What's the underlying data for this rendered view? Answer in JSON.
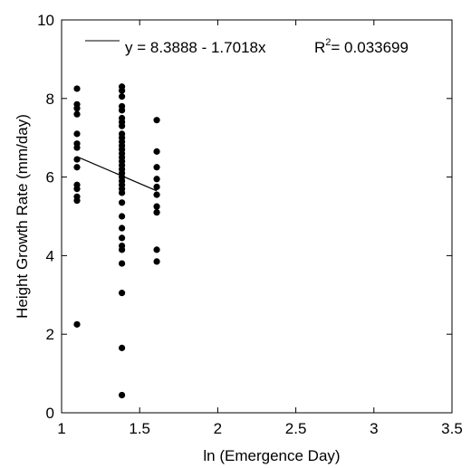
{
  "chart_data": {
    "type": "scatter",
    "title": "",
    "xlabel": "ln (Emergence Day)",
    "ylabel": "Height Growth Rate (mm/day)",
    "xlim": [
      1,
      3.5
    ],
    "ylim": [
      0,
      10
    ],
    "xticks": [
      "1",
      "1.5",
      "2",
      "2.5",
      "3",
      "3.5"
    ],
    "yticks": [
      "0",
      "2",
      "4",
      "6",
      "8",
      "10"
    ],
    "grid": false,
    "legend_position": "top",
    "regression": {
      "intercept": 8.3888,
      "slope": -1.7018,
      "x_range": [
        1.0986,
        1.6094
      ],
      "equation_text": "y = 8.3888 - 1.7018x",
      "r2_label": "R",
      "r2_sup": "2",
      "r2_value": "= 0.033699"
    },
    "series": [
      {
        "x": [
          1.0986,
          1.0986,
          1.0986,
          1.0986,
          1.0986,
          1.0986,
          1.0986,
          1.0986,
          1.0986,
          1.0986,
          1.0986,
          1.0986,
          1.0986,
          1.0986,
          1.3863,
          1.3863,
          1.3863,
          1.3863,
          1.3863,
          1.3863,
          1.3863,
          1.3863,
          1.3863,
          1.3863,
          1.3863,
          1.3863,
          1.3863,
          1.3863,
          1.3863,
          1.3863,
          1.3863,
          1.3863,
          1.3863,
          1.3863,
          1.3863,
          1.3863,
          1.3863,
          1.3863,
          1.3863,
          1.3863,
          1.3863,
          1.3863,
          1.3863,
          1.3863,
          1.3863,
          1.3863,
          1.3863,
          1.3863,
          1.6094,
          1.6094,
          1.6094,
          1.6094,
          1.6094,
          1.6094,
          1.6094,
          1.6094,
          1.6094,
          1.6094
        ],
        "y": [
          8.25,
          7.85,
          7.75,
          7.6,
          7.1,
          6.85,
          6.75,
          6.45,
          6.25,
          5.8,
          5.7,
          5.5,
          5.4,
          2.25,
          8.3,
          8.2,
          8.05,
          7.8,
          7.7,
          7.5,
          7.4,
          7.3,
          7.1,
          7.0,
          6.9,
          6.8,
          6.7,
          6.6,
          6.5,
          6.4,
          6.3,
          6.2,
          6.0,
          5.8,
          5.7,
          5.6,
          5.35,
          5.0,
          4.7,
          4.45,
          4.25,
          4.15,
          3.8,
          3.05,
          1.65,
          0.45,
          6.1,
          5.9,
          7.45,
          6.65,
          6.25,
          5.95,
          5.75,
          5.55,
          5.25,
          5.1,
          4.15,
          3.85
        ]
      }
    ]
  }
}
